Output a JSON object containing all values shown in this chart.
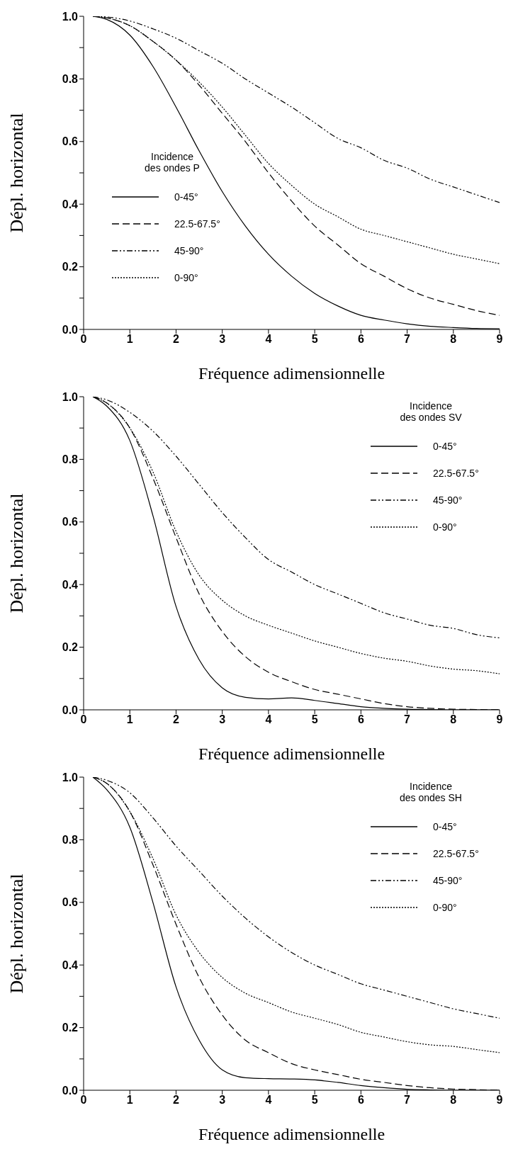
{
  "chart_data": [
    {
      "type": "line",
      "xlabel": "Fréquence adimensionnelle",
      "ylabel": "Dépl. horizontal",
      "legend_title": "Incidence\ndes ondes P",
      "legend": "left",
      "xlim": [
        0,
        9
      ],
      "xticks": [
        0,
        1,
        2,
        3,
        4,
        5,
        6,
        7,
        8,
        9
      ],
      "ylim": [
        0,
        1
      ],
      "yticks": [
        {
          "value": 0,
          "label": "0.0"
        },
        {
          "value": 0.1,
          "label": null
        },
        {
          "value": 0.2,
          "label": "0.2"
        },
        {
          "value": 0.3,
          "label": null
        },
        {
          "value": 0.4,
          "label": "0.4"
        },
        {
          "value": 0.5,
          "label": null
        },
        {
          "value": 0.6,
          "label": "0.6"
        },
        {
          "value": 0.7,
          "label": null
        },
        {
          "value": 0.8,
          "label": "0.8"
        },
        {
          "value": 0.9,
          "label": null
        },
        {
          "value": 1,
          "label": "1.0"
        }
      ],
      "marker": "none",
      "x": [
        0.2,
        0.5,
        1,
        1.5,
        2,
        2.5,
        3,
        3.5,
        4,
        4.5,
        5,
        5.5,
        6,
        6.5,
        7,
        7.5,
        8,
        8.5,
        9
      ],
      "series": [
        {
          "name": "0-45°",
          "color": "#000000",
          "line_style": "solid",
          "values": [
            1.0,
            0.99,
            0.94,
            0.84,
            0.71,
            0.57,
            0.44,
            0.33,
            0.24,
            0.17,
            0.115,
            0.075,
            0.045,
            0.03,
            0.018,
            0.01,
            0.006,
            0.003,
            0.002
          ]
        },
        {
          "name": "22.5-67.5°",
          "color": "#000000",
          "line_style": "dashed",
          "values": [
            1.0,
            0.995,
            0.97,
            0.92,
            0.86,
            0.78,
            0.69,
            0.6,
            0.5,
            0.41,
            0.33,
            0.27,
            0.21,
            0.17,
            0.13,
            0.1,
            0.08,
            0.06,
            0.045
          ]
        },
        {
          "name": "45-90°",
          "color": "#000000",
          "line_style": "dashdot",
          "values": [
            1.0,
            0.998,
            0.985,
            0.96,
            0.93,
            0.89,
            0.85,
            0.8,
            0.755,
            0.71,
            0.66,
            0.61,
            0.58,
            0.54,
            0.515,
            0.48,
            0.455,
            0.43,
            0.405
          ]
        },
        {
          "name": "0-90°",
          "color": "#000000",
          "line_style": "dotted",
          "values": [
            1.0,
            0.995,
            0.97,
            0.92,
            0.86,
            0.79,
            0.71,
            0.62,
            0.53,
            0.46,
            0.4,
            0.36,
            0.32,
            0.3,
            0.28,
            0.26,
            0.24,
            0.225,
            0.21
          ]
        }
      ]
    },
    {
      "type": "line",
      "xlabel": "Fréquence adimensionnelle",
      "ylabel": "Dépl. horizontal",
      "legend_title": "Incidence\ndes ondes SV",
      "legend": "top right",
      "xlim": [
        0,
        9
      ],
      "xticks": [
        0,
        1,
        2,
        3,
        4,
        5,
        6,
        7,
        8,
        9
      ],
      "ylim": [
        0,
        1
      ],
      "yticks": [
        {
          "value": 0,
          "label": "0.0"
        },
        {
          "value": 0.1,
          "label": null
        },
        {
          "value": 0.2,
          "label": "0.2"
        },
        {
          "value": 0.3,
          "label": null
        },
        {
          "value": 0.4,
          "label": "0.4"
        },
        {
          "value": 0.5,
          "label": null
        },
        {
          "value": 0.6,
          "label": "0.6"
        },
        {
          "value": 0.7,
          "label": null
        },
        {
          "value": 0.8,
          "label": "0.8"
        },
        {
          "value": 0.9,
          "label": null
        },
        {
          "value": 1,
          "label": "1.0"
        }
      ],
      "marker": "none",
      "x": [
        0.2,
        0.5,
        1,
        1.5,
        2,
        2.5,
        3,
        3.5,
        4,
        4.5,
        5,
        5.5,
        6,
        6.5,
        7,
        7.5,
        8,
        8.5,
        9
      ],
      "series": [
        {
          "name": "0-45°",
          "color": "#000000",
          "line_style": "solid",
          "values": [
            1.0,
            0.97,
            0.86,
            0.62,
            0.33,
            0.16,
            0.07,
            0.04,
            0.035,
            0.038,
            0.03,
            0.02,
            0.01,
            0.005,
            0.002,
            0.001,
            0,
            0,
            0
          ]
        },
        {
          "name": "22.5-67.5°",
          "color": "#000000",
          "line_style": "dashed",
          "values": [
            1.0,
            0.98,
            0.9,
            0.74,
            0.55,
            0.37,
            0.25,
            0.17,
            0.12,
            0.09,
            0.065,
            0.05,
            0.035,
            0.02,
            0.01,
            0.005,
            0.002,
            0.001,
            0
          ]
        },
        {
          "name": "45-90°",
          "color": "#000000",
          "line_style": "dashdot",
          "values": [
            1.0,
            0.99,
            0.95,
            0.89,
            0.81,
            0.72,
            0.63,
            0.55,
            0.48,
            0.44,
            0.4,
            0.37,
            0.34,
            0.31,
            0.29,
            0.27,
            0.26,
            0.24,
            0.23
          ]
        },
        {
          "name": "0-90°",
          "color": "#000000",
          "line_style": "dotted",
          "values": [
            1.0,
            0.98,
            0.9,
            0.76,
            0.57,
            0.43,
            0.35,
            0.3,
            0.27,
            0.245,
            0.22,
            0.2,
            0.18,
            0.165,
            0.155,
            0.14,
            0.13,
            0.125,
            0.115
          ]
        }
      ]
    },
    {
      "type": "line",
      "xlabel": "Fréquence adimensionnelle",
      "ylabel": "Dépl. horizontal",
      "legend_title": "Incidence\ndes ondes SH",
      "legend": "top right",
      "xlim": [
        0,
        9
      ],
      "xticks": [
        0,
        1,
        2,
        3,
        4,
        5,
        6,
        7,
        8,
        9
      ],
      "ylim": [
        0,
        1
      ],
      "yticks": [
        {
          "value": 0,
          "label": "0.0"
        },
        {
          "value": 0.1,
          "label": null
        },
        {
          "value": 0.2,
          "label": "0.2"
        },
        {
          "value": 0.3,
          "label": null
        },
        {
          "value": 0.4,
          "label": "0.4"
        },
        {
          "value": 0.5,
          "label": null
        },
        {
          "value": 0.6,
          "label": "0.6"
        },
        {
          "value": 0.7,
          "label": null
        },
        {
          "value": 0.8,
          "label": "0.8"
        },
        {
          "value": 0.9,
          "label": null
        },
        {
          "value": 1,
          "label": "1.0"
        }
      ],
      "marker": "none",
      "x": [
        0.2,
        0.5,
        1,
        1.5,
        2,
        2.5,
        3,
        3.5,
        4,
        4.5,
        5,
        5.5,
        6,
        6.5,
        7,
        7.5,
        8,
        8.5,
        9
      ],
      "series": [
        {
          "name": "0-45°",
          "color": "#000000",
          "line_style": "solid",
          "values": [
            1.0,
            0.96,
            0.84,
            0.6,
            0.33,
            0.16,
            0.065,
            0.04,
            0.037,
            0.036,
            0.033,
            0.025,
            0.015,
            0.008,
            0.003,
            0.001,
            0,
            0,
            0
          ]
        },
        {
          "name": "22.5-67.5°",
          "color": "#000000",
          "line_style": "dashed",
          "values": [
            1.0,
            0.98,
            0.89,
            0.72,
            0.53,
            0.36,
            0.24,
            0.16,
            0.12,
            0.085,
            0.065,
            0.05,
            0.035,
            0.025,
            0.015,
            0.008,
            0.004,
            0.002,
            0
          ]
        },
        {
          "name": "45-90°",
          "color": "#000000",
          "line_style": "dashdot",
          "values": [
            1.0,
            0.99,
            0.95,
            0.87,
            0.78,
            0.7,
            0.62,
            0.55,
            0.49,
            0.44,
            0.4,
            0.37,
            0.34,
            0.32,
            0.3,
            0.28,
            0.26,
            0.245,
            0.23
          ]
        },
        {
          "name": "0-90°",
          "color": "#000000",
          "line_style": "dotted",
          "values": [
            1.0,
            0.98,
            0.89,
            0.74,
            0.56,
            0.44,
            0.36,
            0.31,
            0.28,
            0.25,
            0.23,
            0.21,
            0.185,
            0.17,
            0.155,
            0.145,
            0.14,
            0.13,
            0.12
          ]
        }
      ]
    }
  ]
}
